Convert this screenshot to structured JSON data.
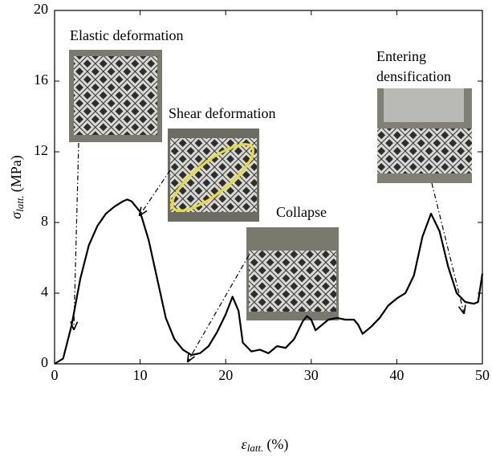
{
  "chart_data": {
    "type": "line",
    "xlabel": {
      "symbol": "ε",
      "subscript": "latt.",
      "unit": "(%)"
    },
    "ylabel": {
      "symbol": "σ",
      "subscript": "latt.",
      "unit": "(MPa)"
    },
    "x": [
      0,
      1,
      2,
      3,
      4,
      5,
      6,
      7,
      8,
      8.5,
      9,
      10,
      11,
      12,
      13,
      14,
      15,
      16,
      17,
      18,
      19,
      20,
      20.8,
      21.5,
      22,
      23,
      24,
      25,
      26,
      27,
      28,
      29,
      29.5,
      30,
      30.5,
      31,
      32,
      33,
      34,
      35,
      35.5,
      36,
      37,
      38,
      39,
      40,
      41,
      42,
      43,
      44,
      45,
      46,
      47,
      48,
      49,
      49.5,
      50
    ],
    "values": [
      0,
      0.3,
      2.2,
      4.8,
      6.7,
      7.8,
      8.5,
      8.9,
      9.2,
      9.3,
      9.2,
      8.6,
      7.0,
      4.8,
      2.6,
      1.4,
      0.8,
      0.5,
      0.6,
      1.0,
      1.8,
      2.8,
      3.8,
      3.0,
      1.2,
      0.7,
      0.8,
      0.6,
      1.0,
      0.9,
      1.4,
      2.4,
      2.7,
      2.5,
      1.9,
      2.1,
      2.5,
      2.6,
      2.5,
      2.5,
      2.2,
      1.7,
      2.1,
      2.6,
      3.3,
      3.7,
      4.0,
      5.0,
      7.2,
      8.5,
      7.5,
      5.5,
      4.0,
      3.5,
      3.4,
      3.5,
      5.1
    ],
    "color": "#000000",
    "xlim": [
      0,
      50
    ],
    "xticks": [
      0,
      10,
      20,
      30,
      40,
      50
    ],
    "ylim": [
      0,
      20
    ],
    "yticks": [
      0,
      4,
      8,
      12,
      16,
      20
    ],
    "grid": false,
    "annotations": [
      "Elastic deformation",
      "Shear deformation",
      "Collapse",
      [
        "Entering",
        "densification"
      ]
    ]
  }
}
